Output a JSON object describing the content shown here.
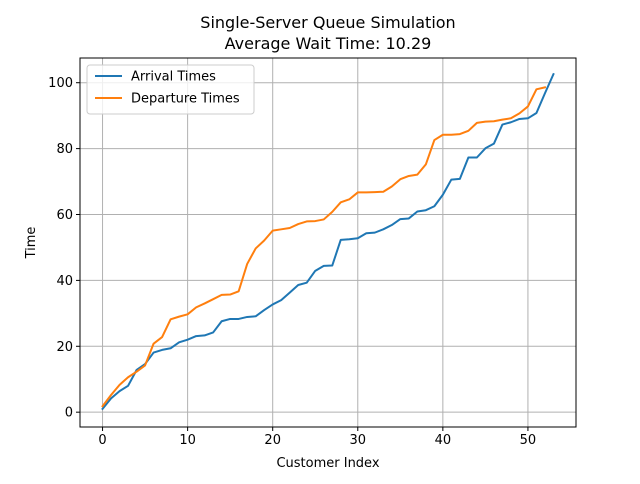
{
  "chart_data": {
    "type": "line",
    "title": "Single-Server Queue Simulation",
    "subtitle": "Average Wait Time: 10.29",
    "xlabel": "Customer Index",
    "ylabel": "Time",
    "xlim": [
      -2.65,
      55.65
    ],
    "ylim": [
      -4.5,
      107.5
    ],
    "xticks": [
      0,
      10,
      20,
      30,
      40,
      50
    ],
    "yticks": [
      0,
      20,
      40,
      60,
      80,
      100
    ],
    "grid": true,
    "legend_position": "top-left",
    "x": [
      0,
      1,
      2,
      3,
      4,
      5,
      6,
      7,
      8,
      9,
      10,
      11,
      12,
      13,
      14,
      15,
      16,
      17,
      18,
      19,
      20,
      21,
      22,
      23,
      24,
      25,
      26,
      27,
      28,
      29,
      30,
      31,
      32,
      33,
      34,
      35,
      36,
      37,
      38,
      39,
      40,
      41,
      42,
      43,
      44,
      45,
      46,
      47,
      48,
      49,
      50,
      51,
      52,
      53
    ],
    "series": [
      {
        "name": "Arrival Times",
        "color": "#1f77b4",
        "values": [
          1.0,
          4.2,
          6.4,
          8.0,
          12.8,
          14.6,
          18.1,
          18.9,
          19.4,
          21.2,
          22.0,
          23.1,
          23.3,
          24.2,
          27.6,
          28.3,
          28.3,
          28.9,
          29.1,
          31.0,
          32.7,
          34.0,
          36.3,
          38.6,
          39.3,
          42.9,
          44.4,
          44.5,
          52.3,
          52.5,
          52.8,
          54.3,
          54.5,
          55.5,
          56.8,
          58.6,
          58.8,
          60.9,
          61.3,
          62.5,
          66.0,
          70.6,
          70.8,
          77.3,
          77.3,
          80.1,
          81.5,
          87.3,
          88.0,
          89.0,
          89.2,
          90.8,
          96.8,
          102.6
        ]
      },
      {
        "name": "Departure Times",
        "color": "#ff7f0e",
        "values": [
          1.8,
          5.2,
          8.3,
          10.6,
          12.3,
          14.2,
          20.8,
          22.8,
          28.2,
          29.0,
          29.7,
          31.8,
          33.0,
          34.3,
          35.6,
          35.7,
          36.7,
          45.0,
          49.7,
          52.1,
          55.1,
          55.5,
          55.9,
          57.1,
          57.9,
          58.0,
          58.5,
          60.8,
          63.7,
          64.6,
          66.7,
          66.7,
          66.8,
          66.9,
          68.5,
          70.7,
          71.7,
          72.1,
          75.2,
          82.6,
          84.2,
          84.2,
          84.4,
          85.4,
          87.8,
          88.2,
          88.3,
          88.8,
          89.2,
          90.7,
          92.8,
          98.0,
          98.6,
          null
        ]
      }
    ]
  }
}
